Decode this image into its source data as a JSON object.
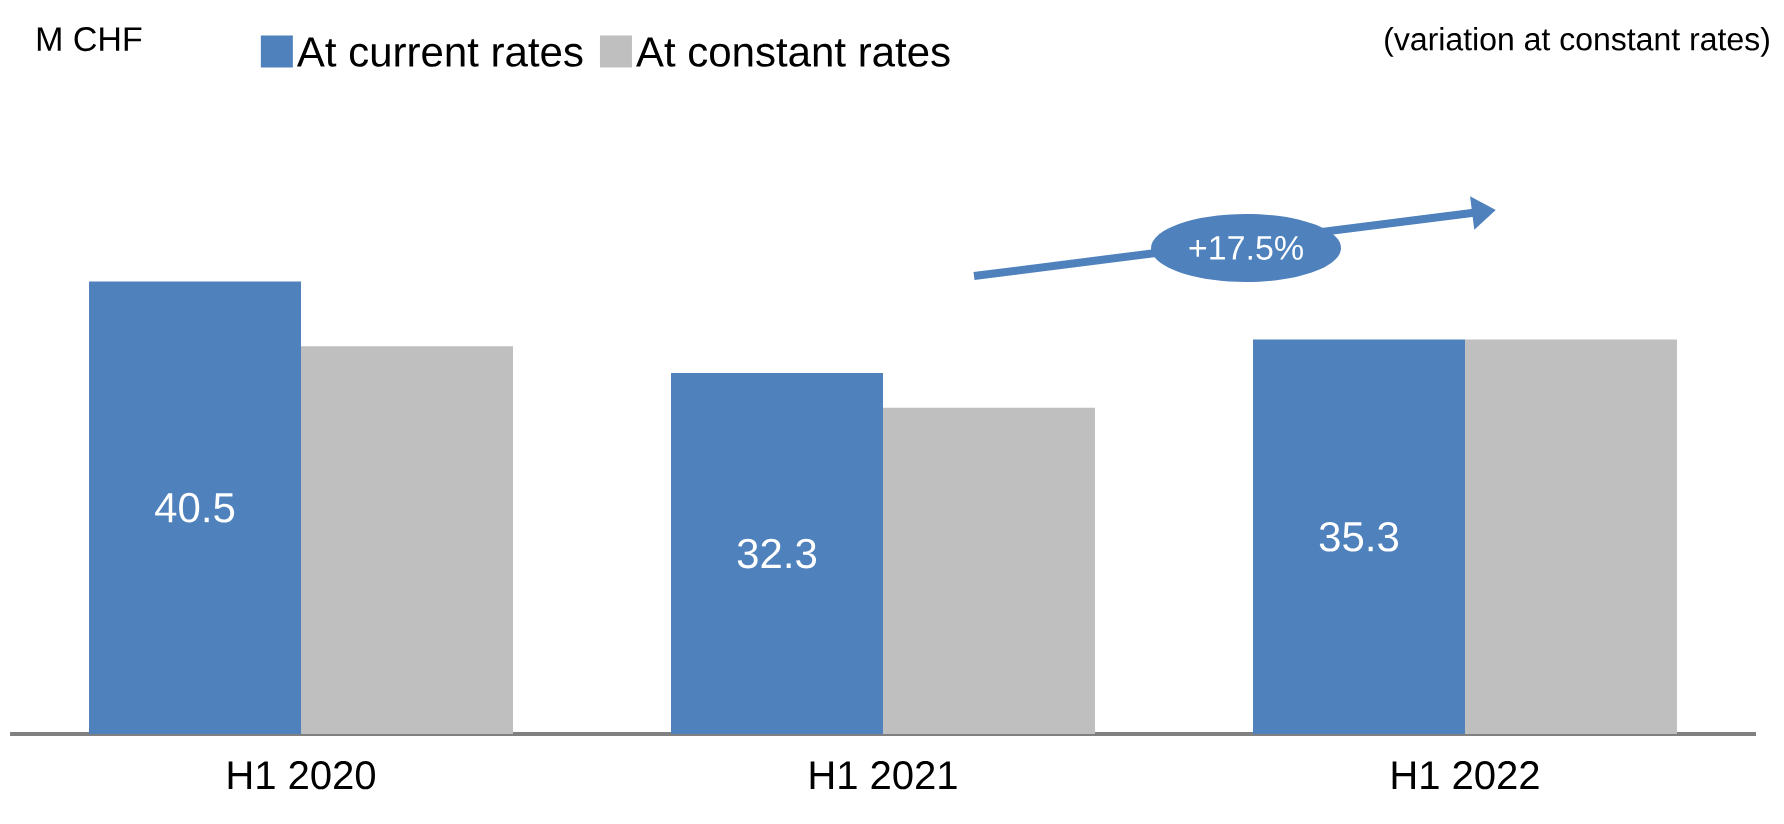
{
  "chart_data": {
    "type": "bar",
    "categories": [
      "H1 2020",
      "H1 2021",
      "H1 2022"
    ],
    "series": [
      {
        "name": "At current rates",
        "color": "#4f81bd",
        "values": [
          40.5,
          32.3,
          35.3
        ],
        "value_labels": [
          "40.5",
          "32.3",
          "35.3"
        ]
      },
      {
        "name": "At constant rates",
        "color": "#bfbfbf",
        "values": [
          34.7,
          29.2,
          35.3
        ],
        "value_labels": [
          null,
          null,
          null
        ]
      }
    ],
    "annotations": [
      "+17.5%",
      "M CHF",
      "(variation at constant rates)"
    ],
    "legend": "top"
  }
}
